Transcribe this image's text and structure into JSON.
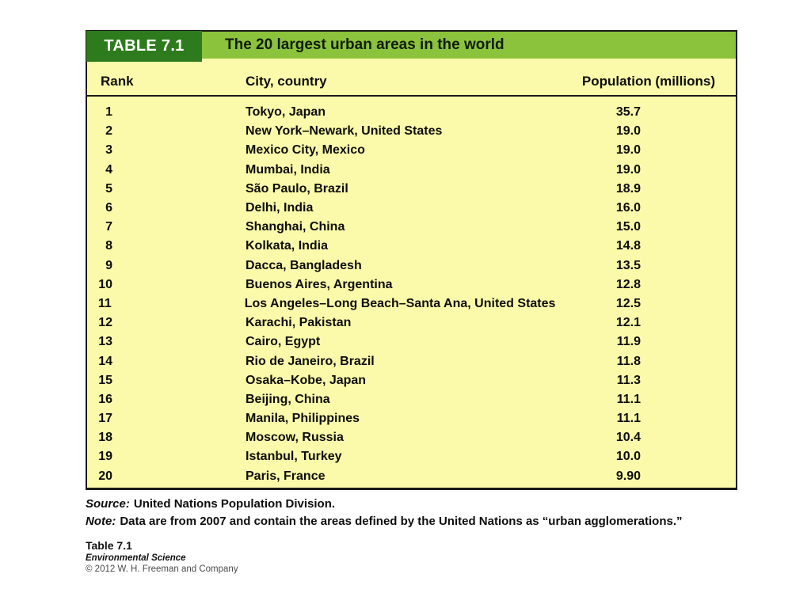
{
  "table": {
    "label": "TABLE 7.1",
    "title": "The 20 largest urban areas in the world",
    "columns": [
      "Rank",
      "City, country",
      "Population (millions)"
    ],
    "rows": [
      {
        "rank": "1",
        "city": "Tokyo, Japan",
        "population": "35.7"
      },
      {
        "rank": "2",
        "city": "New York–Newark, United States",
        "population": "19.0"
      },
      {
        "rank": "3",
        "city": "Mexico City, Mexico",
        "population": "19.0"
      },
      {
        "rank": "4",
        "city": "Mumbai, India",
        "population": "19.0"
      },
      {
        "rank": "5",
        "city": "São Paulo, Brazil",
        "population": "18.9"
      },
      {
        "rank": "6",
        "city": "Delhi, India",
        "population": "16.0"
      },
      {
        "rank": "7",
        "city": "Shanghai, China",
        "population": "15.0"
      },
      {
        "rank": "8",
        "city": "Kolkata, India",
        "population": "14.8"
      },
      {
        "rank": "9",
        "city": "Dacca, Bangladesh",
        "population": "13.5"
      },
      {
        "rank": "10",
        "city": "Buenos Aires, Argentina",
        "population": "12.8"
      },
      {
        "rank": "11",
        "city": "Los Angeles–Long Beach–Santa Ana, United States",
        "population": "12.5"
      },
      {
        "rank": "12",
        "city": "Karachi, Pakistan",
        "population": "12.1"
      },
      {
        "rank": "13",
        "city": "Cairo, Egypt",
        "population": "11.9"
      },
      {
        "rank": "14",
        "city": "Rio de Janeiro, Brazil",
        "population": "11.8"
      },
      {
        "rank": "15",
        "city": "Osaka–Kobe, Japan",
        "population": "11.3"
      },
      {
        "rank": "16",
        "city": "Beijing, China",
        "population": "11.1"
      },
      {
        "rank": "17",
        "city": "Manila, Philippines",
        "population": "11.1"
      },
      {
        "rank": "18",
        "city": "Moscow, Russia",
        "population": "10.4"
      },
      {
        "rank": "19",
        "city": "Istanbul, Turkey",
        "population": "10.0"
      },
      {
        "rank": "20",
        "city": "Paris, France",
        "population": "9.90"
      }
    ]
  },
  "footnotes": {
    "source": {
      "label": "Source:",
      "text": "United Nations Population Division."
    },
    "note": {
      "label": "Note:",
      "text": "Data are from 2007 and contain the areas defined by the United Nations as “urban agglomerations.”"
    }
  },
  "attribution": {
    "figure": "Table 7.1",
    "book": "Environmental Science",
    "copyright": "© 2012 W. H. Freeman and Company"
  },
  "colors": {
    "label_block_green": "#2e7b1d",
    "title_bar_green": "#8cc33c",
    "table_body_yellow": "#fbfaaa",
    "border_black": "#1a1a1a"
  }
}
